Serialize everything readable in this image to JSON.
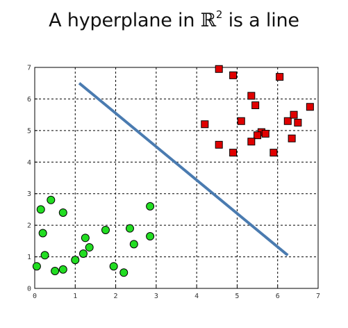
{
  "title": {
    "prefix": "A hyperplane in ",
    "symbol": "ℝ",
    "exponent": "2",
    "suffix": " is a line"
  },
  "chart_data": {
    "type": "scatter",
    "title": "A hyperplane in ℝ2 is a line",
    "xlabel": "",
    "ylabel": "",
    "xlim": [
      0,
      7
    ],
    "ylim": [
      0,
      7
    ],
    "xticks": [
      "0",
      "1",
      "2",
      "3",
      "4",
      "5",
      "6",
      "7"
    ],
    "yticks": [
      "0",
      "1",
      "2",
      "3",
      "4",
      "5",
      "6",
      "7"
    ],
    "grid": true,
    "grid_style": "dashed",
    "series": [
      {
        "marker": "square",
        "color": "#e00000",
        "points": [
          [
            4.55,
            6.95
          ],
          [
            4.9,
            6.75
          ],
          [
            5.35,
            6.1
          ],
          [
            5.45,
            5.8
          ],
          [
            6.05,
            6.7
          ],
          [
            6.8,
            5.75
          ],
          [
            5.1,
            5.3
          ],
          [
            4.2,
            5.2
          ],
          [
            6.25,
            5.3
          ],
          [
            6.4,
            5.5
          ],
          [
            6.5,
            5.25
          ],
          [
            5.6,
            4.95
          ],
          [
            5.7,
            4.9
          ],
          [
            5.5,
            4.85
          ],
          [
            5.35,
            4.65
          ],
          [
            6.35,
            4.75
          ],
          [
            4.55,
            4.55
          ],
          [
            4.9,
            4.3
          ],
          [
            5.9,
            4.3
          ]
        ]
      },
      {
        "marker": "circle",
        "color": "#22dd22",
        "points": [
          [
            0.15,
            2.5
          ],
          [
            0.4,
            2.8
          ],
          [
            0.7,
            2.4
          ],
          [
            0.2,
            1.75
          ],
          [
            2.85,
            2.6
          ],
          [
            1.75,
            1.85
          ],
          [
            2.35,
            1.9
          ],
          [
            1.25,
            1.6
          ],
          [
            2.85,
            1.65
          ],
          [
            2.45,
            1.4
          ],
          [
            1.35,
            1.3
          ],
          [
            1.2,
            1.1
          ],
          [
            1.0,
            0.9
          ],
          [
            0.25,
            1.05
          ],
          [
            0.05,
            0.7
          ],
          [
            0.5,
            0.55
          ],
          [
            0.7,
            0.6
          ],
          [
            1.95,
            0.7
          ],
          [
            2.2,
            0.5
          ]
        ]
      }
    ],
    "line": {
      "color": "#4a7bb0",
      "points": [
        [
          1.1,
          6.5
        ],
        [
          6.25,
          1.05
        ]
      ]
    }
  }
}
